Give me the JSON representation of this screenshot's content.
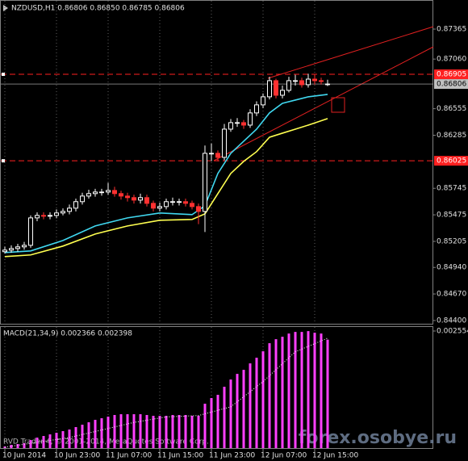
{
  "chart_data": [
    {
      "type": "candlestick",
      "title": "NZDUSD,H1  0.86806 0.86850 0.86785 0.86806",
      "open": [
        0.851,
        0.85116,
        0.85132,
        0.85149,
        0.85165,
        0.85444,
        0.85469,
        0.85461,
        0.85469,
        0.85494,
        0.8551,
        0.85543,
        0.85609,
        0.85666,
        0.85691,
        0.85707,
        0.85707,
        0.85723,
        0.85691,
        0.85666,
        0.8565,
        0.85625,
        0.8565,
        0.85592,
        0.85543,
        0.85559,
        0.85609,
        0.85609,
        0.85609,
        0.85592,
        0.85559,
        0.8551,
        0.86101,
        0.86101,
        0.8606,
        0.86347,
        0.86413,
        0.86413,
        0.86388,
        0.86512,
        0.86594,
        0.86676,
        0.8684,
        0.86692,
        0.86742,
        0.8684,
        0.8684,
        0.86799,
        0.86856,
        0.8684,
        0.86806
      ],
      "high": [
        0.8515,
        0.85165,
        0.8518,
        0.852,
        0.8547,
        0.855,
        0.855,
        0.855,
        0.8553,
        0.8554,
        0.8558,
        0.8564,
        0.857,
        0.8573,
        0.8574,
        0.8574,
        0.858,
        0.8576,
        0.8572,
        0.857,
        0.8568,
        0.8569,
        0.8568,
        0.8562,
        0.856,
        0.8564,
        0.8565,
        0.8564,
        0.8564,
        0.8562,
        0.8559,
        0.8618,
        0.862,
        0.8613,
        0.864,
        0.8645,
        0.8646,
        0.8644,
        0.8655,
        0.8663,
        0.8671,
        0.8688,
        0.8686,
        0.8679,
        0.8688,
        0.869,
        0.8687,
        0.8691,
        0.869,
        0.8687,
        0.8685
      ],
      "low": [
        0.8508,
        0.8509,
        0.851,
        0.8512,
        0.8514,
        0.8541,
        0.8543,
        0.8543,
        0.8544,
        0.8547,
        0.8548,
        0.8551,
        0.8558,
        0.8564,
        0.8566,
        0.8567,
        0.8568,
        0.8566,
        0.8563,
        0.8561,
        0.8559,
        0.8559,
        0.8556,
        0.8551,
        0.8551,
        0.8553,
        0.8557,
        0.8557,
        0.8556,
        0.8553,
        0.8538,
        0.853,
        0.8602,
        0.8602,
        0.8603,
        0.8632,
        0.8637,
        0.8635,
        0.8636,
        0.8648,
        0.8656,
        0.8665,
        0.8666,
        0.8666,
        0.8672,
        0.8679,
        0.8677,
        0.8677,
        0.868,
        0.868,
        0.86785
      ],
      "close": [
        0.85116,
        0.85132,
        0.85149,
        0.85165,
        0.85444,
        0.85469,
        0.85461,
        0.85469,
        0.85494,
        0.8551,
        0.85543,
        0.85609,
        0.85666,
        0.85691,
        0.85707,
        0.85707,
        0.85723,
        0.85691,
        0.85666,
        0.8565,
        0.85625,
        0.8565,
        0.85592,
        0.85543,
        0.85559,
        0.85609,
        0.85609,
        0.85609,
        0.85592,
        0.85559,
        0.8551,
        0.86101,
        0.86101,
        0.8606,
        0.86347,
        0.86413,
        0.86413,
        0.86388,
        0.86512,
        0.86594,
        0.86676,
        0.8684,
        0.86692,
        0.86742,
        0.8684,
        0.8684,
        0.86799,
        0.86856,
        0.8684,
        0.86832,
        0.86806
      ],
      "up_color": "#ffffff",
      "down_color": "#ff3030",
      "ylim": [
        0.84375,
        0.87661
      ],
      "yticks": [
        0.87365,
        {
          "value": 0.8706,
          "label": "0.87060"
        },
        0.86555,
        0.86285,
        0.85745,
        0.85475,
        0.85205,
        {
          "value": 0.8494,
          "label": "0.84940"
        },
        {
          "value": 0.8467,
          "label": "0.84670"
        },
        {
          "value": 0.844,
          "label": "0.84400"
        }
      ],
      "xlim": [
        -0.75,
        66.375
      ],
      "xticks": [
        {
          "value": 0,
          "label": "10 Jun 2014"
        },
        {
          "value": 8,
          "label": "10 Jun 23:00"
        },
        {
          "value": 16,
          "label": "11 Jun 07:00"
        },
        {
          "value": 24,
          "label": "11 Jun 15:00"
        },
        {
          "value": 32,
          "label": "11 Jun 23:00"
        },
        {
          "value": 40,
          "label": "12 Jun 07:00"
        },
        {
          "value": 48,
          "label": "12 Jun 15:00"
        }
      ],
      "grid": true,
      "lines": [
        {
          "color": "#40d8f0",
          "x": [
            0,
            4,
            9,
            14,
            19,
            24,
            29,
            31,
            33,
            35,
            37,
            39,
            41,
            43,
            45,
            47,
            50
          ],
          "values": [
            0.85091,
            0.85108,
            0.85214,
            0.85362,
            0.85444,
            0.85494,
            0.85477,
            0.85567,
            0.85896,
            0.86101,
            0.86224,
            0.86347,
            0.86512,
            0.8661,
            0.86643,
            0.86676,
            0.867
          ]
        },
        {
          "color": "#ffff50",
          "x": [
            0,
            4,
            9,
            14,
            19,
            24,
            29,
            31,
            33,
            35,
            37,
            39,
            41,
            43,
            45,
            47,
            50
          ],
          "values": [
            0.8505,
            0.85067,
            0.85157,
            0.8528,
            0.85362,
            0.8542,
            0.85428,
            0.85485,
            0.85691,
            0.85896,
            0.86019,
            0.86118,
            0.86265,
            0.86306,
            0.86347,
            0.86388,
            0.86454
          ]
        }
      ],
      "levels": [
        {
          "value": 0.86905,
          "color": "#ff2020"
        },
        {
          "value": 0.86806,
          "color": "#c0c0c0"
        },
        {
          "value": 0.86025,
          "color": "#ff2020"
        }
      ]
    },
    {
      "type": "macd",
      "title": "MACD(21,34,9) 0.002366 0.002398",
      "values": [
        3.5e-05,
        7e-05,
        8.8e-05,
        0.000106,
        0.000176,
        0.000229,
        0.000264,
        0.000299,
        0.000334,
        0.00037,
        0.000405,
        0.000458,
        0.00051,
        0.000563,
        0.000616,
        0.000651,
        0.000686,
        0.000722,
        0.000739,
        0.000739,
        0.000739,
        0.000739,
        0.000722,
        0.000704,
        0.000704,
        0.000704,
        0.000722,
        0.000722,
        0.000722,
        0.000704,
        0.000704,
        0.000968,
        0.001091,
        0.001162,
        0.001338,
        0.001496,
        0.001619,
        0.001707,
        0.001848,
        0.001971,
        0.002112,
        0.002288,
        0.002376,
        0.002429,
        0.002499,
        0.002534,
        0.002534,
        0.002552,
        0.002517,
        0.002499,
        0.002366
      ],
      "color": "#ff40ff",
      "signal": {
        "color": "#ffffff",
        "x": [
          0,
          10,
          20,
          25,
          30,
          35,
          40,
          45,
          50
        ],
        "values": [
          2e-05,
          0.00023,
          0.00056,
          0.00068,
          0.00071,
          0.0009,
          0.00145,
          0.0021,
          0.002398
        ]
      },
      "ylim": [
        0,
        0.002554
      ],
      "yticks": [
        0.002554
      ],
      "xlim": [
        -0.75,
        66.375
      ]
    }
  ],
  "footer": {
    "copyright": "RVD Trader 4, © 2001-2014, MetaQuotes Software Corp.",
    "watermark": "forex.osobye.ru"
  }
}
